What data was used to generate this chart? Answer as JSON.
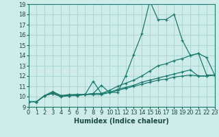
{
  "title": "",
  "xlabel": "Humidex (Indice chaleur)",
  "background_color": "#cdecea",
  "grid_color": "#aed8d4",
  "line_color": "#1a7a6e",
  "series": [
    {
      "x": [
        0,
        1,
        2,
        3,
        4,
        5,
        6,
        7,
        8,
        9,
        10,
        11,
        12,
        13,
        14,
        15,
        16,
        17,
        18,
        19,
        20,
        21,
        22,
        23
      ],
      "y": [
        9.5,
        9.5,
        10.1,
        10.5,
        10.1,
        10.2,
        10.2,
        10.2,
        10.3,
        11.1,
        10.4,
        10.4,
        12.0,
        14.1,
        16.1,
        19.3,
        17.5,
        17.5,
        18.0,
        15.5,
        14.0,
        14.2,
        13.8,
        12.1
      ]
    },
    {
      "x": [
        0,
        1,
        2,
        3,
        4,
        5,
        6,
        7,
        8,
        9,
        10,
        11,
        12,
        13,
        14,
        15,
        16,
        17,
        18,
        19,
        20,
        21,
        22,
        23
      ],
      "y": [
        9.5,
        9.5,
        10.1,
        10.4,
        10.1,
        10.1,
        10.2,
        10.2,
        10.3,
        10.3,
        10.6,
        11.0,
        11.3,
        11.6,
        12.0,
        12.5,
        13.0,
        13.2,
        13.5,
        13.7,
        14.0,
        14.2,
        12.1,
        12.1
      ]
    },
    {
      "x": [
        0,
        1,
        2,
        3,
        4,
        5,
        6,
        7,
        8,
        9,
        10,
        11,
        12,
        13,
        14,
        15,
        16,
        17,
        18,
        19,
        20,
        21,
        22,
        23
      ],
      "y": [
        9.5,
        9.5,
        10.1,
        10.3,
        10.0,
        10.1,
        10.1,
        10.2,
        10.2,
        10.2,
        10.4,
        10.7,
        10.9,
        11.1,
        11.4,
        11.6,
        11.8,
        12.0,
        12.2,
        12.4,
        12.6,
        12.0,
        12.0,
        12.1
      ]
    },
    {
      "x": [
        0,
        1,
        2,
        3,
        4,
        5,
        6,
        7,
        8,
        9,
        10,
        11,
        12,
        13,
        14,
        15,
        16,
        17,
        18,
        19,
        20,
        21,
        22,
        23
      ],
      "y": [
        9.5,
        9.5,
        10.1,
        10.3,
        10.0,
        10.1,
        10.1,
        10.2,
        11.5,
        10.3,
        10.4,
        10.6,
        10.8,
        11.0,
        11.2,
        11.4,
        11.6,
        11.7,
        11.9,
        12.0,
        12.1,
        12.0,
        12.0,
        12.1
      ]
    }
  ],
  "xlim": [
    0,
    23
  ],
  "ylim": [
    9,
    19
  ],
  "xticks": [
    0,
    1,
    2,
    3,
    4,
    5,
    6,
    7,
    8,
    9,
    10,
    11,
    12,
    13,
    14,
    15,
    16,
    17,
    18,
    19,
    20,
    21,
    22,
    23
  ],
  "yticks": [
    9,
    10,
    11,
    12,
    13,
    14,
    15,
    16,
    17,
    18,
    19
  ],
  "xlabel_fontsize": 7,
  "tick_fontsize": 6
}
